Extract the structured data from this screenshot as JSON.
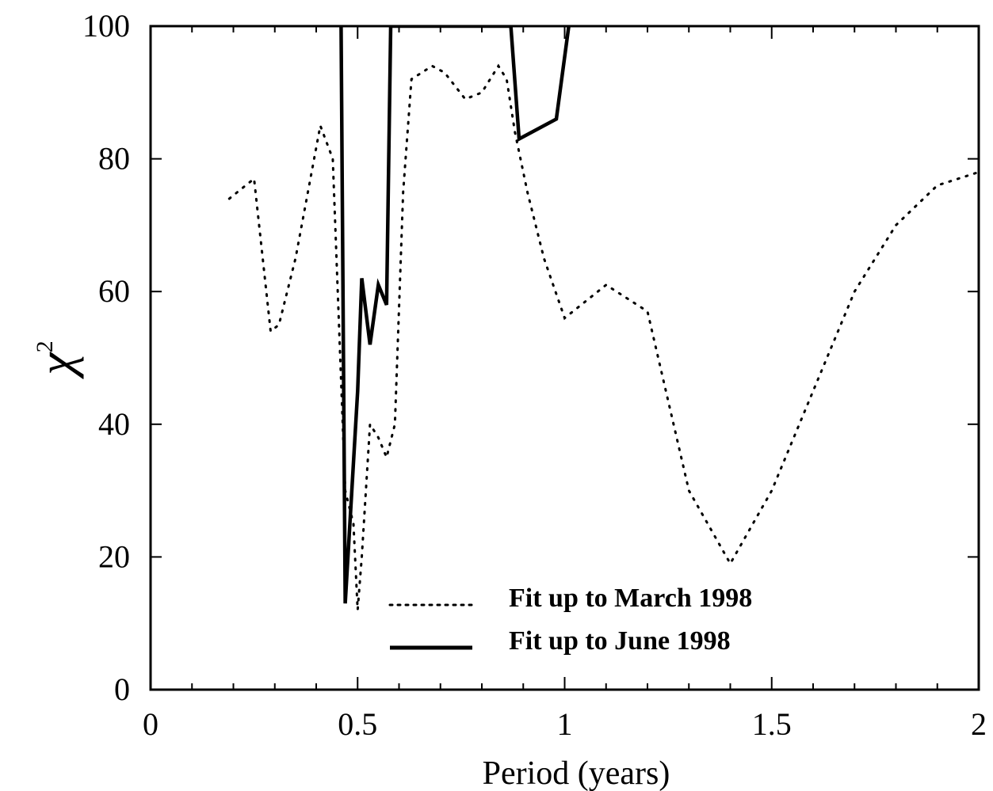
{
  "chart_data": {
    "type": "line",
    "xlabel": "Period (years)",
    "ylabel": "χ",
    "ylabel_superscript": "2",
    "xlim": [
      0,
      2
    ],
    "ylim": [
      0,
      100
    ],
    "xticks": [
      0,
      0.5,
      1,
      1.5,
      2
    ],
    "xtick_labels": [
      "0",
      "0.5",
      "1",
      "1.5",
      "2"
    ],
    "yticks": [
      0,
      20,
      40,
      60,
      80,
      100
    ],
    "ytick_labels": [
      "0",
      "20",
      "40",
      "60",
      "80",
      "100"
    ],
    "grid": false,
    "legend_position": "bottom-center",
    "series": [
      {
        "name": "Fit up to March 1998",
        "style": "dotted",
        "x": [
          0.19,
          0.25,
          0.29,
          0.31,
          0.35,
          0.41,
          0.44,
          0.47,
          0.49,
          0.5,
          0.51,
          0.53,
          0.55,
          0.57,
          0.59,
          0.61,
          0.63,
          0.68,
          0.71,
          0.76,
          0.8,
          0.84,
          0.86,
          0.88,
          0.91,
          0.95,
          1.0,
          1.1,
          1.2,
          1.3,
          1.4,
          1.5,
          1.6,
          1.7,
          1.8,
          1.9,
          2.0
        ],
        "y": [
          74,
          77,
          54,
          55,
          65,
          85,
          80,
          30,
          25,
          12,
          20,
          40,
          38,
          35,
          40,
          75,
          92,
          94,
          93,
          89,
          90,
          94,
          92,
          84,
          75,
          65,
          56,
          61,
          57,
          30,
          19,
          30,
          45,
          60,
          70,
          76,
          78
        ]
      },
      {
        "name": "Fit up to June 1998",
        "style": "solid",
        "x": [
          0.46,
          0.47,
          0.5,
          0.51,
          0.53,
          0.55,
          0.57,
          0.58,
          0.59,
          0.6,
          0.87,
          0.89,
          0.98,
          1.01
        ],
        "y": [
          100,
          13,
          45,
          62,
          52,
          61,
          58,
          100,
          100,
          100,
          100,
          83,
          86,
          100
        ]
      }
    ]
  }
}
